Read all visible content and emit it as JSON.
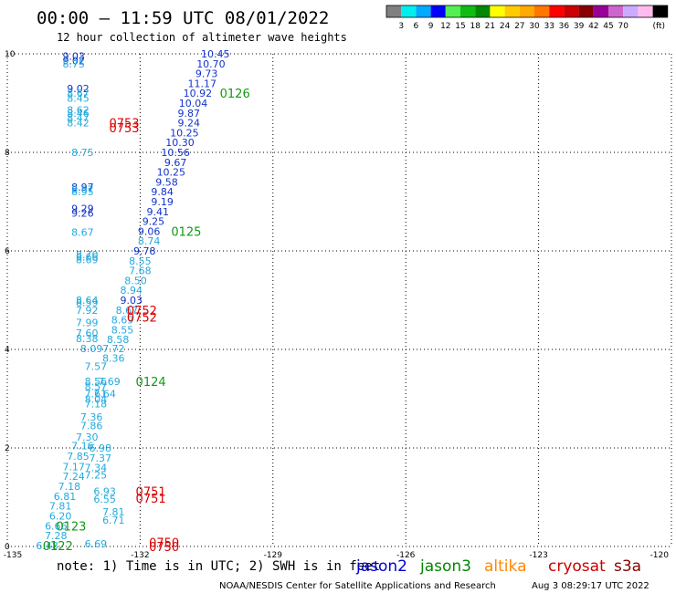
{
  "header": {
    "title": "00:00 — 11:59 UTC 08/01/2022",
    "subtitle": "12 hour collection of altimeter wave heights"
  },
  "legend": {
    "unit": "(ft)",
    "colors": [
      "#808080",
      "#00eeee",
      "#00aaff",
      "#0000ff",
      "#55ee55",
      "#11bb11",
      "#008800",
      "#ffff00",
      "#ffcc00",
      "#ffaa00",
      "#ff7700",
      "#ff0000",
      "#cc0000",
      "#880000",
      "#990099",
      "#cc66cc",
      "#ccaaff",
      "#ffbbee",
      "#000000"
    ],
    "labels": [
      "3",
      "6",
      "9",
      "12",
      "15",
      "18",
      "21",
      "24",
      "27",
      "30",
      "33",
      "36",
      "39",
      "42",
      "45",
      "70"
    ]
  },
  "footer": {
    "note": "note: 1) Time is in UTC; 2) SWH is in feet",
    "satellites": [
      {
        "name": "jason2",
        "color": "#0000cc"
      },
      {
        "name": "jason3",
        "color": "#008800"
      },
      {
        "name": "altika",
        "color": "#ff8800"
      },
      {
        "name": "cryosat",
        "color": "#cc0000"
      },
      {
        "name": "s3a",
        "color": "#880000"
      }
    ],
    "credit": "NOAA/NESDIS Center for Satellite Applications and Research",
    "timestamp": "Aug  3 08:29:17 UTC 2022"
  },
  "chart_data": {
    "type": "scatter",
    "xlim": [
      -135,
      -120
    ],
    "ylim": [
      0,
      10
    ],
    "x_ticks": [
      "-135",
      "-132",
      "-129",
      "-126",
      "-123",
      "-120"
    ],
    "y_ticks": [
      "0",
      "2",
      "4",
      "6",
      "8",
      "10"
    ],
    "grid": true,
    "points": [
      {
        "lon": -133.5,
        "lat": 9.95,
        "t": "9.03",
        "c": "#1133cc"
      },
      {
        "lon": -133.5,
        "lat": 9.86,
        "t": "9.02",
        "c": "#1133cc"
      },
      {
        "lon": -133.5,
        "lat": 9.8,
        "t": "8.75",
        "c": "#22aadd"
      },
      {
        "lon": -133.4,
        "lat": 9.3,
        "t": "9.02",
        "c": "#1133cc"
      },
      {
        "lon": -133.4,
        "lat": 9.2,
        "t": "8.67",
        "c": "#22aadd"
      },
      {
        "lon": -133.4,
        "lat": 9.1,
        "t": "8.45",
        "c": "#22aadd"
      },
      {
        "lon": -133.4,
        "lat": 8.86,
        "t": "8.62",
        "c": "#22aadd"
      },
      {
        "lon": -133.4,
        "lat": 8.8,
        "t": "8.46",
        "c": "#22aadd"
      },
      {
        "lon": -133.4,
        "lat": 8.7,
        "t": "8.47",
        "c": "#22aadd"
      },
      {
        "lon": -133.4,
        "lat": 8.6,
        "t": "8.42",
        "c": "#22aadd"
      },
      {
        "lon": -133.3,
        "lat": 8.0,
        "t": "8.75",
        "c": "#22aadd"
      },
      {
        "lon": -133.3,
        "lat": 7.3,
        "t": "8.97",
        "c": "#1133cc"
      },
      {
        "lon": -133.3,
        "lat": 7.25,
        "t": "8.67",
        "c": "#22aadd"
      },
      {
        "lon": -133.3,
        "lat": 7.2,
        "t": "8.95",
        "c": "#22aadd"
      },
      {
        "lon": -133.3,
        "lat": 6.86,
        "t": "9.29",
        "c": "#1133cc"
      },
      {
        "lon": -133.3,
        "lat": 6.77,
        "t": "9.26",
        "c": "#1133cc"
      },
      {
        "lon": -133.3,
        "lat": 6.38,
        "t": "8.67",
        "c": "#22aadd"
      },
      {
        "lon": -133.2,
        "lat": 5.93,
        "t": "8.70",
        "c": "#22aadd"
      },
      {
        "lon": -133.2,
        "lat": 5.88,
        "t": "8.66",
        "c": "#22aadd"
      },
      {
        "lon": -133.2,
        "lat": 5.82,
        "t": "8.69",
        "c": "#22aadd"
      },
      {
        "lon": -133.2,
        "lat": 5.0,
        "t": "8.64",
        "c": "#22aadd"
      },
      {
        "lon": -133.2,
        "lat": 4.95,
        "t": "8.59",
        "c": "#22aadd"
      },
      {
        "lon": -133.2,
        "lat": 4.8,
        "t": "7.92",
        "c": "#22aadd"
      },
      {
        "lon": -133.2,
        "lat": 4.55,
        "t": "7.99",
        "c": "#22aadd"
      },
      {
        "lon": -133.2,
        "lat": 4.33,
        "t": "7.60",
        "c": "#22aadd"
      },
      {
        "lon": -133.2,
        "lat": 4.22,
        "t": "8.38",
        "c": "#22aadd"
      },
      {
        "lon": -133.1,
        "lat": 4.02,
        "t": "8.09",
        "c": "#22aadd"
      },
      {
        "lon": -133.0,
        "lat": 3.66,
        "t": "7.57",
        "c": "#22aadd"
      },
      {
        "lon": -133.0,
        "lat": 3.35,
        "t": "8.56",
        "c": "#22aadd"
      },
      {
        "lon": -133.0,
        "lat": 3.25,
        "t": "8.57",
        "c": "#22aadd"
      },
      {
        "lon": -133.0,
        "lat": 3.1,
        "t": "7.61",
        "c": "#22aadd"
      },
      {
        "lon": -133.0,
        "lat": 2.99,
        "t": "8.04",
        "c": "#22aadd"
      },
      {
        "lon": -133.0,
        "lat": 2.9,
        "t": "7.18",
        "c": "#22aadd"
      },
      {
        "lon": -133.1,
        "lat": 2.63,
        "t": "7.36",
        "c": "#22aadd"
      },
      {
        "lon": -133.1,
        "lat": 2.45,
        "t": "7.86",
        "c": "#22aadd"
      },
      {
        "lon": -133.2,
        "lat": 2.22,
        "t": "7.30",
        "c": "#22aadd"
      },
      {
        "lon": -133.3,
        "lat": 2.05,
        "t": "7.16",
        "c": "#22aadd"
      },
      {
        "lon": -133.4,
        "lat": 1.83,
        "t": "7.85",
        "c": "#22aadd"
      },
      {
        "lon": -133.5,
        "lat": 1.62,
        "t": "7.17",
        "c": "#22aadd"
      },
      {
        "lon": -133.5,
        "lat": 1.43,
        "t": "7.24",
        "c": "#22aadd"
      },
      {
        "lon": -133.6,
        "lat": 1.22,
        "t": "7.18",
        "c": "#22aadd"
      },
      {
        "lon": -133.7,
        "lat": 1.02,
        "t": "6.81",
        "c": "#22aadd"
      },
      {
        "lon": -133.8,
        "lat": 0.82,
        "t": "7.81",
        "c": "#22aadd"
      },
      {
        "lon": -133.8,
        "lat": 0.62,
        "t": "6.20",
        "c": "#22aadd"
      },
      {
        "lon": -133.9,
        "lat": 0.42,
        "t": "6.66",
        "c": "#22aadd"
      },
      {
        "lon": -133.9,
        "lat": 0.22,
        "t": "7.28",
        "c": "#22aadd"
      },
      {
        "lon": -134.1,
        "lat": 0.02,
        "t": "6.48",
        "c": "#22aadd"
      },
      {
        "lon": -130.3,
        "lat": 10.0,
        "t": "10.45",
        "c": "#1133cc"
      },
      {
        "lon": -130.4,
        "lat": 9.8,
        "t": "10.70",
        "c": "#1133cc"
      },
      {
        "lon": -130.5,
        "lat": 9.6,
        "t": "9.73",
        "c": "#1133cc"
      },
      {
        "lon": -130.6,
        "lat": 9.4,
        "t": "11.17",
        "c": "#1133cc"
      },
      {
        "lon": -130.7,
        "lat": 9.2,
        "t": "10.92",
        "c": "#1133cc"
      },
      {
        "lon": -130.8,
        "lat": 9.0,
        "t": "10.04",
        "c": "#1133cc"
      },
      {
        "lon": -130.9,
        "lat": 8.8,
        "t": "9.87",
        "c": "#1133cc"
      },
      {
        "lon": -130.9,
        "lat": 8.6,
        "t": "9.24",
        "c": "#1133cc"
      },
      {
        "lon": -131.0,
        "lat": 8.4,
        "t": "10.25",
        "c": "#1133cc"
      },
      {
        "lon": -131.1,
        "lat": 8.2,
        "t": "10.30",
        "c": "#1133cc"
      },
      {
        "lon": -131.2,
        "lat": 8.0,
        "t": "10.56",
        "c": "#1133cc"
      },
      {
        "lon": -131.2,
        "lat": 7.8,
        "t": "9.67",
        "c": "#1133cc"
      },
      {
        "lon": -131.3,
        "lat": 7.6,
        "t": "10.25",
        "c": "#1133cc"
      },
      {
        "lon": -131.4,
        "lat": 7.4,
        "t": "9.58",
        "c": "#1133cc"
      },
      {
        "lon": -131.5,
        "lat": 7.2,
        "t": "9.84",
        "c": "#1133cc"
      },
      {
        "lon": -131.5,
        "lat": 7.0,
        "t": "9.19",
        "c": "#1133cc"
      },
      {
        "lon": -131.6,
        "lat": 6.8,
        "t": "9.41",
        "c": "#1133cc"
      },
      {
        "lon": -131.7,
        "lat": 6.6,
        "t": "9.25",
        "c": "#1133cc"
      },
      {
        "lon": -131.8,
        "lat": 6.4,
        "t": "9.06",
        "c": "#1133cc"
      },
      {
        "lon": -131.8,
        "lat": 6.2,
        "t": "8.74",
        "c": "#22aadd"
      },
      {
        "lon": -131.9,
        "lat": 6.0,
        "t": "9.78",
        "c": "#1133cc"
      },
      {
        "lon": -132.0,
        "lat": 5.8,
        "t": "8.55",
        "c": "#22aadd"
      },
      {
        "lon": -132.0,
        "lat": 5.6,
        "t": "7.68",
        "c": "#22aadd"
      },
      {
        "lon": -132.1,
        "lat": 5.4,
        "t": "8.50",
        "c": "#22aadd"
      },
      {
        "lon": -132.2,
        "lat": 5.2,
        "t": "8.94",
        "c": "#22aadd"
      },
      {
        "lon": -132.2,
        "lat": 5.0,
        "t": "9.03",
        "c": "#1133cc"
      },
      {
        "lon": -132.3,
        "lat": 4.8,
        "t": "8.67",
        "c": "#22aadd"
      },
      {
        "lon": -132.4,
        "lat": 4.6,
        "t": "8.69",
        "c": "#22aadd"
      },
      {
        "lon": -132.4,
        "lat": 4.4,
        "t": "8.55",
        "c": "#22aadd"
      },
      {
        "lon": -132.5,
        "lat": 4.2,
        "t": "8.58",
        "c": "#22aadd"
      },
      {
        "lon": -132.6,
        "lat": 4.02,
        "t": "7.72",
        "c": "#22aadd"
      },
      {
        "lon": -132.6,
        "lat": 3.82,
        "t": "8.36",
        "c": "#22aadd"
      },
      {
        "lon": -132.7,
        "lat": 3.35,
        "t": "7.69",
        "c": "#22aadd"
      },
      {
        "lon": -132.8,
        "lat": 3.1,
        "t": "7.64",
        "c": "#22aadd"
      },
      {
        "lon": -132.9,
        "lat": 2.0,
        "t": "6.98",
        "c": "#22aadd"
      },
      {
        "lon": -132.9,
        "lat": 1.8,
        "t": "7.37",
        "c": "#22aadd"
      },
      {
        "lon": -133.0,
        "lat": 1.6,
        "t": "7.34",
        "c": "#22aadd"
      },
      {
        "lon": -133.0,
        "lat": 1.45,
        "t": "7.25",
        "c": "#22aadd"
      },
      {
        "lon": -132.8,
        "lat": 1.12,
        "t": "6.93",
        "c": "#22aadd"
      },
      {
        "lon": -132.8,
        "lat": 0.96,
        "t": "6.55",
        "c": "#22aadd"
      },
      {
        "lon": -132.6,
        "lat": 0.7,
        "t": "7.81",
        "c": "#22aadd"
      },
      {
        "lon": -132.6,
        "lat": 0.54,
        "t": "6.71",
        "c": "#22aadd"
      },
      {
        "lon": -133.0,
        "lat": 0.06,
        "t": "6.69",
        "c": "#22aadd"
      }
    ],
    "time_labels": [
      {
        "lon": -130.2,
        "lat": 9.2,
        "t": "0126",
        "c": "#119911"
      },
      {
        "lon": -131.3,
        "lat": 6.4,
        "t": "0125",
        "c": "#119911"
      },
      {
        "lon": -132.1,
        "lat": 3.35,
        "t": "0124",
        "c": "#119911"
      },
      {
        "lon": -133.9,
        "lat": 0.42,
        "t": "0123",
        "c": "#119911"
      },
      {
        "lon": -134.2,
        "lat": 0.02,
        "t": "0122",
        "c": "#119911"
      },
      {
        "lon": -132.7,
        "lat": 8.6,
        "t": "0753",
        "c": "#dd0000"
      },
      {
        "lon": -132.7,
        "lat": 8.5,
        "t": "0753",
        "c": "#dd0000"
      },
      {
        "lon": -132.3,
        "lat": 4.8,
        "t": "0752",
        "c": "#dd0000"
      },
      {
        "lon": -132.3,
        "lat": 4.66,
        "t": "0752",
        "c": "#dd0000"
      },
      {
        "lon": -132.1,
        "lat": 1.12,
        "t": "0751",
        "c": "#dd0000"
      },
      {
        "lon": -132.1,
        "lat": 0.98,
        "t": "0751",
        "c": "#dd0000"
      },
      {
        "lon": -131.8,
        "lat": 0.08,
        "t": "0750",
        "c": "#dd0000"
      },
      {
        "lon": -131.8,
        "lat": 0.0,
        "t": "0750",
        "c": "#dd0000"
      }
    ]
  }
}
